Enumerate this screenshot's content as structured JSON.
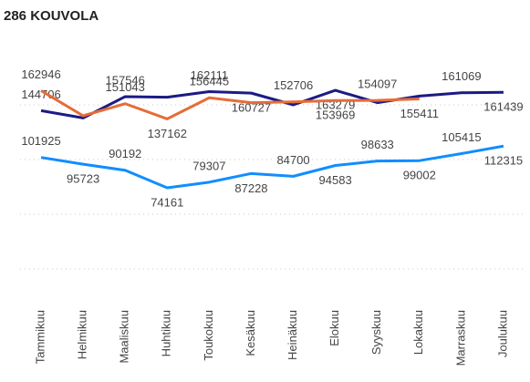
{
  "chart_data": {
    "type": "line",
    "title": "286 KOUVOLA",
    "categories": [
      "Tammikuu",
      "Helmikuu",
      "Maaliskuu",
      "Huhtikuu",
      "Toukokuu",
      "Kesäkuu",
      "Heinäkuu",
      "Elokuu",
      "Syyskuu",
      "Lokakuu",
      "Marraskuu",
      "Joulukuu"
    ],
    "series": [
      {
        "color": "#1b1b84",
        "values": [
          144706,
          138000,
          157546,
          157000,
          162111,
          160727,
          150000,
          163279,
          152000,
          158000,
          161069,
          161439
        ],
        "value_labels": [
          "144706",
          null,
          "157546",
          null,
          "162111",
          "160727",
          null,
          "163279",
          null,
          null,
          "161069",
          "161439"
        ]
      },
      {
        "color": "#e66c37",
        "values": [
          162946,
          140000,
          151043,
          137162,
          156445,
          152000,
          152706,
          153969,
          154097,
          155411,
          null,
          null
        ],
        "value_labels": [
          "162946",
          null,
          "151043",
          "137162",
          "156445",
          null,
          "152706",
          "153969",
          "154097",
          "155411",
          null,
          null
        ]
      },
      {
        "color": "#118dff",
        "values": [
          101925,
          95723,
          90192,
          74161,
          79307,
          87228,
          84700,
          94583,
          98633,
          99002,
          105415,
          112315
        ],
        "value_labels": [
          "101925",
          "95723",
          "90192",
          "74161",
          "79307",
          "87228",
          "84700",
          "94583",
          "98633",
          "99002",
          "105415",
          "112315"
        ]
      }
    ],
    "ylim": [
      0,
      200000
    ],
    "yticks": [
      0,
      50000,
      100000,
      150000
    ],
    "grid": true
  }
}
